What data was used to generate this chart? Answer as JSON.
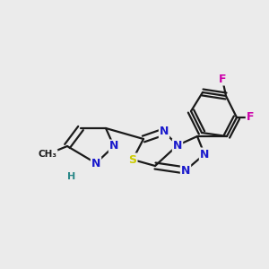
{
  "background_color": "#ebebeb",
  "bond_color": "#1a1a1a",
  "atom_colors": {
    "N": "#1a1acc",
    "S": "#cccc00",
    "F": "#cc00aa",
    "H": "#2a8888"
  },
  "fig_width": 3.0,
  "fig_height": 3.0,
  "dpi": 100,
  "bond_lw": 1.6,
  "double_off": 0.014,
  "font_size": 9.0
}
